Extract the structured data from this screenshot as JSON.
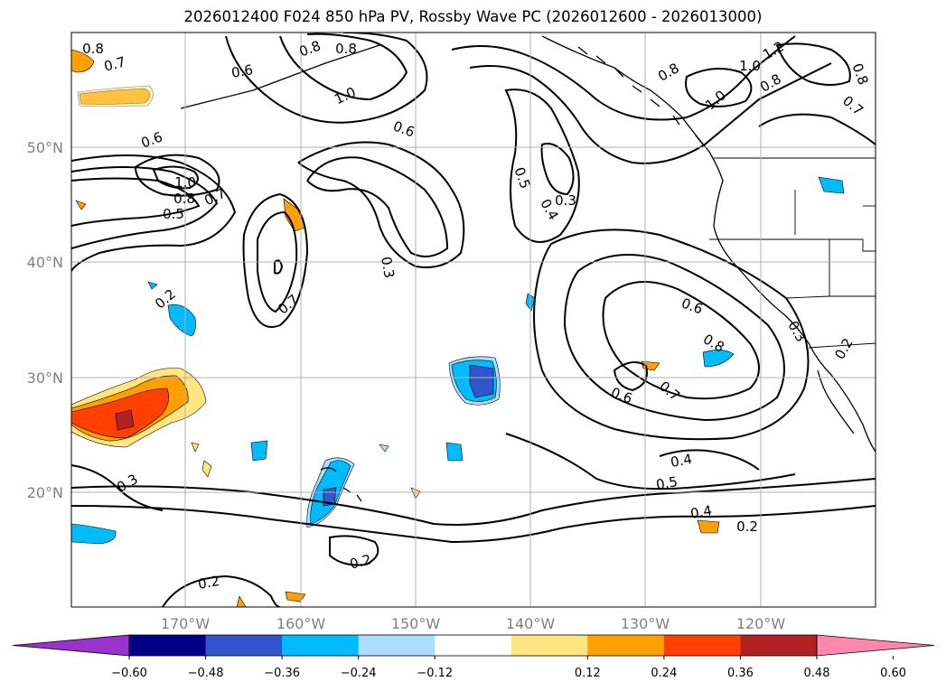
{
  "title": "2026012400 F024 850 hPa PV, Rossby Wave PC (2026012600 - 2026013000)",
  "lat_ticks": [
    "50°N",
    "40°N",
    "30°N",
    "20°N"
  ],
  "lon_ticks": [
    "170°W",
    "160°W",
    "150°W",
    "140°W",
    "130°W",
    "120°W"
  ],
  "colorbar": {
    "ticks": [
      "−0.60",
      "−0.48",
      "−0.36",
      "−0.24",
      "−0.12",
      "0.12",
      "0.24",
      "0.36",
      "0.48",
      "0.60"
    ],
    "colors": [
      "#9933cc",
      "#000088",
      "#3355cc",
      "#00bbff",
      "#aaddff",
      "#ffffff",
      "#ffe680",
      "#ffa000",
      "#ff4000",
      "#b22222",
      "#ff88aa"
    ]
  },
  "contour_labels": [
    {
      "t": "0.8"
    },
    {
      "t": "0.7"
    },
    {
      "t": "0.6"
    },
    {
      "t": "0.8"
    },
    {
      "t": "0.8"
    },
    {
      "t": "1.0"
    },
    {
      "t": "0.6"
    },
    {
      "t": "0.6"
    },
    {
      "t": "1.0"
    },
    {
      "t": "0.8"
    },
    {
      "t": "0.7"
    },
    {
      "t": "0.5"
    },
    {
      "t": "0.2"
    },
    {
      "t": "0.7"
    },
    {
      "t": "0.3"
    },
    {
      "t": "0.5"
    },
    {
      "t": "0.3"
    },
    {
      "t": "0.4"
    },
    {
      "t": "0.6"
    },
    {
      "t": "0.8"
    },
    {
      "t": "0.6"
    },
    {
      "t": "0.7"
    },
    {
      "t": "0.4"
    },
    {
      "t": "0.5"
    },
    {
      "t": "0.4"
    },
    {
      "t": "0.2"
    },
    {
      "t": "0.3"
    },
    {
      "t": "0.2"
    },
    {
      "t": "0.2"
    },
    {
      "t": "0.8"
    },
    {
      "t": "1.0"
    },
    {
      "t": "1.2"
    },
    {
      "t": "1.0"
    },
    {
      "t": "0.8"
    },
    {
      "t": "0.8"
    },
    {
      "t": "0.7"
    },
    {
      "t": "0.3"
    },
    {
      "t": "0.2"
    }
  ]
}
